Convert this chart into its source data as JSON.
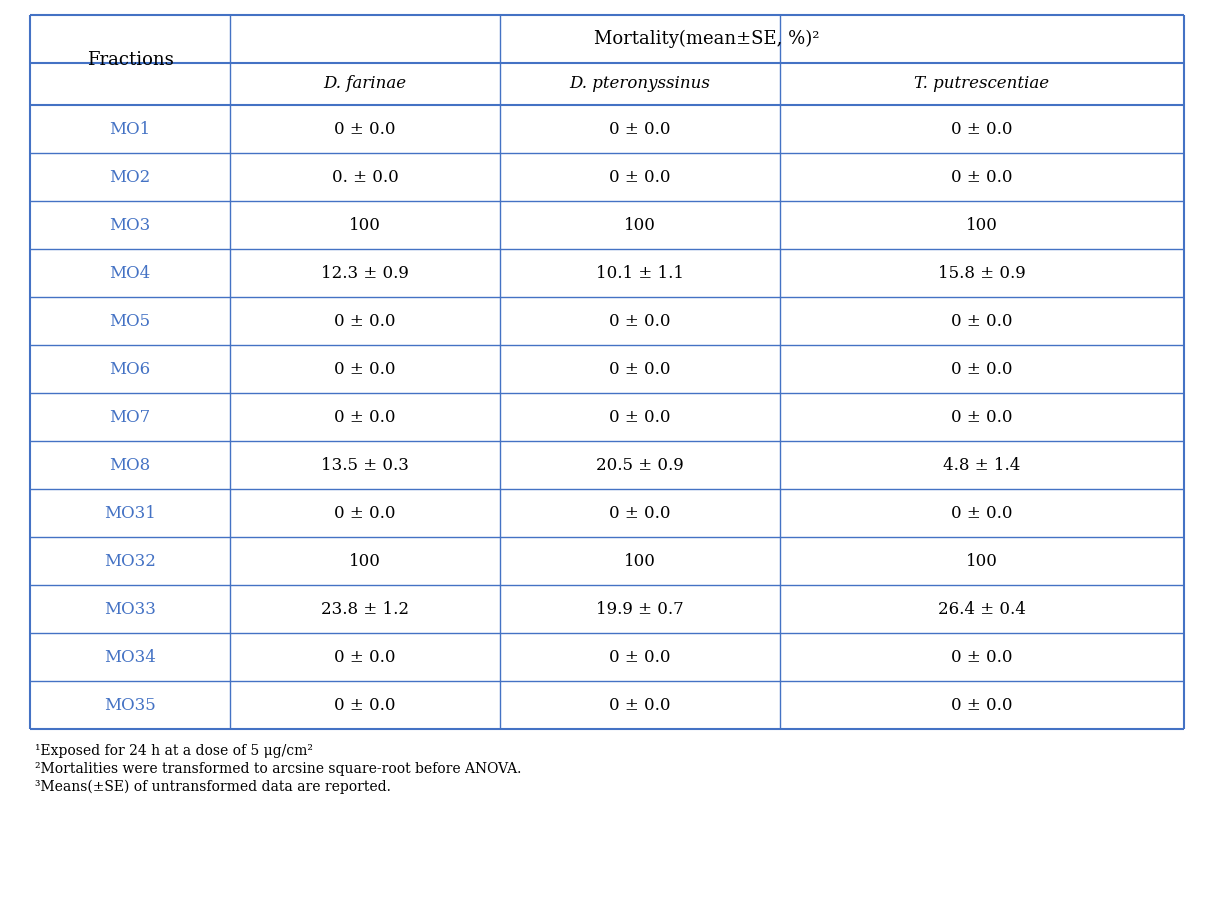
{
  "fractions_color": "#4472C4",
  "data_color": "#000000",
  "header_color": "#000000",
  "italic_color": "#000000",
  "background": "#FFFFFF",
  "line_color": "#4472C4",
  "fractions": [
    "MO1",
    "MO2",
    "MO3",
    "MO4",
    "MO5",
    "MO6",
    "MO7",
    "MO8",
    "MO31",
    "MO32",
    "MO33",
    "MO34",
    "MO35"
  ],
  "d_farinae": [
    "0 ± 0.0",
    "0. ± 0.0",
    "100",
    "12.3 ± 0.9",
    "0 ± 0.0",
    "0 ± 0.0",
    "0 ± 0.0",
    "13.5 ± 0.3",
    "0 ± 0.0",
    "100",
    "23.8 ± 1.2",
    "0 ± 0.0",
    "0 ± 0.0"
  ],
  "d_pteronyssinus": [
    "0 ± 0.0",
    "0 ± 0.0",
    "100",
    "10.1 ± 1.1",
    "0 ± 0.0",
    "0 ± 0.0",
    "0 ± 0.0",
    "20.5 ± 0.9",
    "0 ± 0.0",
    "100",
    "19.9 ± 0.7",
    "0 ± 0.0",
    "0 ± 0.0"
  ],
  "t_putrescentiae": [
    "0 ± 0.0",
    "0 ± 0.0",
    "100",
    "15.8 ± 0.9",
    "0 ± 0.0",
    "0 ± 0.0",
    "0 ± 0.0",
    "4.8 ± 1.4",
    "0 ± 0.0",
    "100",
    "26.4 ± 0.4",
    "0 ± 0.0",
    "0 ± 0.0"
  ],
  "main_header": "Mortality(mean±SE, %)²",
  "col1_header": "D. farinae",
  "col2_header": "D. pteronyssinus",
  "col3_header": "T. putrescentiae",
  "row_header": "Fractions",
  "footnote1": "¹Exposed for 24 h at a dose of 5 μg/cm²",
  "footnote2": "²Mortalities were transformed to arcsine square-root before ANOVA.",
  "footnote3": "³Means(±SE) of untransformed data are reported.",
  "fraction_text_color": "#4472C4",
  "table_line_color": "#4472C4"
}
